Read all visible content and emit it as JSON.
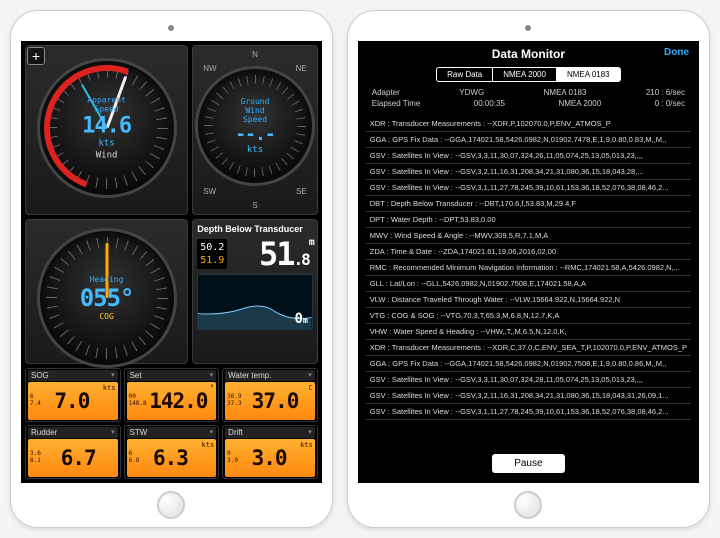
{
  "left": {
    "plus": "+",
    "windGauge": {
      "topLabel": "Apparent",
      "speedLabel": "Speed",
      "value": "14.6",
      "unit": "kts",
      "bottomLabel": "Wind",
      "dir_n": "N",
      "scale_left": "60",
      "scale_top": "30",
      "needle_deg": 200,
      "red_arc": true
    },
    "groundWind": {
      "topLabel": "Ground\nWind",
      "speedLabel": "Speed",
      "value": "--.-",
      "unit": "kts",
      "nw": "NW",
      "n": "N",
      "ne": "NE",
      "w": "W",
      "e": "E",
      "sw": "SW",
      "s": "S",
      "se": "SE"
    },
    "heading": {
      "topLabel": "Heading",
      "value": "055°",
      "bottom": "COG",
      "n": "N",
      "marks": [
        "330",
        "30"
      ]
    },
    "depth": {
      "title": "Depth Below Transducer",
      "min": "50.2",
      "max": "51.9",
      "big": "51",
      "big_dec": ".8",
      "big_unit": "m",
      "sonar_val": "0",
      "sonar_unit": "m"
    },
    "lcds": [
      {
        "label": "SOG",
        "min": "6",
        "max": "7.4",
        "val": "7.0",
        "unit": "kts"
      },
      {
        "label": "Set",
        "min": "00",
        "max": "148.8",
        "val": "142.0",
        "unit": "°"
      },
      {
        "label": "Water temp.",
        "min": "36.9",
        "max": "37.3",
        "val": "37.0",
        "unit": "C"
      },
      {
        "label": "Rudder",
        "min": "3.6",
        "max": "8.1",
        "val": "6.7",
        "unit": ""
      },
      {
        "label": "STW",
        "min": "6",
        "max": "6.8",
        "val": "6.3",
        "unit": "kts"
      },
      {
        "label": "Drift",
        "min": "0",
        "max": "3.0",
        "val": "3.0",
        "unit": "kts"
      }
    ]
  },
  "right": {
    "title": "Data Monitor",
    "done": "Done",
    "tabs": [
      "Raw Data",
      "NMEA 2000",
      "NMEA 0183"
    ],
    "activeTab": 2,
    "adapter_lbl": "Adapter",
    "adapter_val": "YDWG",
    "nmea0183_lbl": "NMEA 0183",
    "nmea0183_val": "210 : 6/sec",
    "elapsed_lbl": "Elapsed Time",
    "elapsed_val": "00:00:35",
    "nmea2000_lbl": "NMEA 2000",
    "nmea2000_val": "0 : 0/sec",
    "rows": [
      "XDR : Transducer Measurements : --XDR,P,102070.0,P,ENV_ATMOS_P",
      "GGA : GPS Fix Data : --GGA,174021.58,5426.0982,N,01902.7478,E,1,9,0.80,0.83,M,,M,,",
      "GSV : Satellites In View : --GSV,3,3,11,30,07,324,26,11,05,074,25,13,05,013,23,,,,",
      "GSV : Satellites In View : --GSV,3,2,11,16,31,208,34,21,31,080,36,15,18,043,28,...",
      "GSV : Satellites In View : --GSV,3,1,11,27,78,245,39,10,61,153,36,18,52,076,38,08,46,2...",
      "DBT : Depth Below Transducer : --DBT,170.6,f,53.83,M,29.4,F",
      "DPT : Water Depth : --DPT,53.83,0.00",
      "MWV : Wind Speed & Angle : --MWV,309.5,R,7.1,M,A",
      "ZDA : Time & Date : --ZDA,174021.61,19,06,2016,02,00",
      "RMC : Recommended Minimum Navigation Information : --RMC,174021.58,A,5426.0982,N,...",
      "GLL : Lat/Lon : --GLL,5426.0982,N,01902.7508,E,174021.58,A,A",
      "VLW : Distance Traveled Through Water : --VLW,15664.922,N,15664.922,N",
      "VTG : COG & SOG : --VTG,70.3,T,65.3,M,6.8,N,12.7,K,A",
      "VHW : Water Speed & Heading : --VHW,,T,,M,6.5,N,12.0,K,",
      "XDR : Transducer Measurements : --XDR,C,37.0,C,ENV_SEA_T,P,102070.0,P,ENV_ATMOS_P",
      "GGA : GPS Fix Data : --GGA,174021.58,5426.0982,N,01902.7508,E,1,9,0.80,0.86,M,,M,,",
      "GSV : Satellites In View : --GSV,3,3,11,30,07,324,28,11,05,074,25,13,05,013,23,,,,",
      "GSV : Satellites In View : --GSV,3,2,11,16,31,208,34,21,31,080,36,15,18,043,31,26,09,1...",
      "GSV : Satellites In View : --GSV,3,1,11,27,78,245,39,10,61,153,36,18,52,076,38,08,46,2..."
    ],
    "pause": "Pause"
  },
  "colors": {
    "accent_blue": "#4bf",
    "lcd_bg": "#ff9820",
    "panel_bg": "#222"
  }
}
